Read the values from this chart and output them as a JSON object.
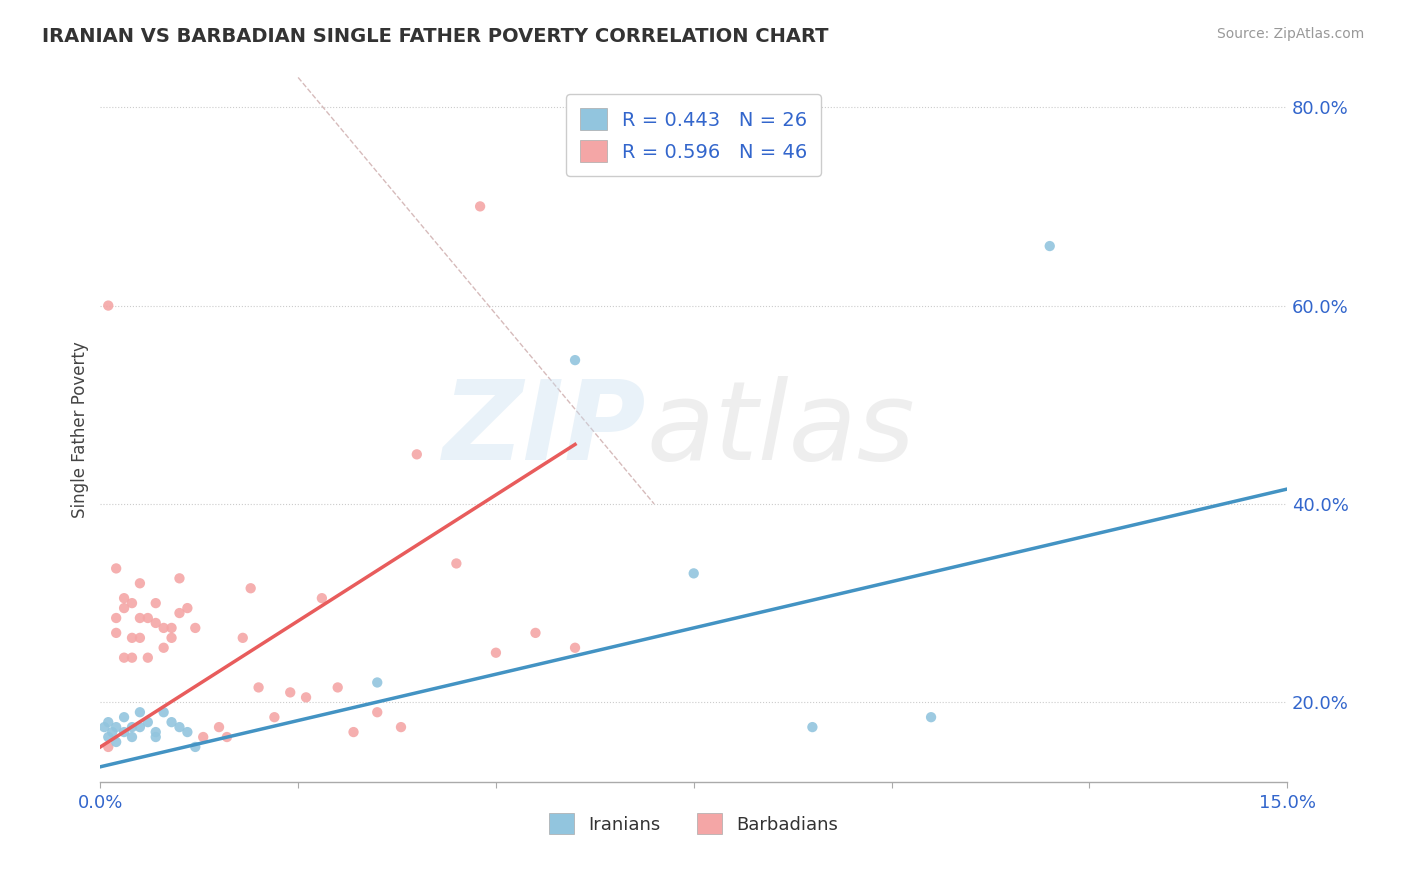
{
  "title": "IRANIAN VS BARBADIAN SINGLE FATHER POVERTY CORRELATION CHART",
  "source": "Source: ZipAtlas.com",
  "ylabel": "Single Father Poverty",
  "xlim": [
    0.0,
    0.15
  ],
  "ylim": [
    0.12,
    0.83
  ],
  "yticks_right": [
    0.2,
    0.4,
    0.6,
    0.8
  ],
  "ytick_right_labels": [
    "20.0%",
    "40.0%",
    "60.0%",
    "80.0%"
  ],
  "iranian_R": 0.443,
  "iranian_N": 26,
  "barbadian_R": 0.596,
  "barbadian_N": 46,
  "iranian_color": "#92c5de",
  "barbadian_color": "#f4a6a6",
  "iranian_line_color": "#4393c3",
  "barbadian_line_color": "#e85c5c",
  "background_color": "#ffffff",
  "iranian_points_x": [
    0.0005,
    0.001,
    0.001,
    0.0015,
    0.002,
    0.002,
    0.003,
    0.003,
    0.004,
    0.004,
    0.005,
    0.005,
    0.006,
    0.007,
    0.007,
    0.008,
    0.009,
    0.01,
    0.011,
    0.012,
    0.035,
    0.06,
    0.075,
    0.09,
    0.105,
    0.12
  ],
  "iranian_points_y": [
    0.175,
    0.18,
    0.165,
    0.17,
    0.175,
    0.16,
    0.185,
    0.17,
    0.175,
    0.165,
    0.19,
    0.175,
    0.18,
    0.17,
    0.165,
    0.19,
    0.18,
    0.175,
    0.17,
    0.155,
    0.22,
    0.545,
    0.33,
    0.175,
    0.185,
    0.66
  ],
  "barbadian_points_x": [
    0.001,
    0.001,
    0.002,
    0.002,
    0.002,
    0.003,
    0.003,
    0.003,
    0.004,
    0.004,
    0.004,
    0.005,
    0.005,
    0.005,
    0.006,
    0.006,
    0.007,
    0.007,
    0.008,
    0.008,
    0.009,
    0.009,
    0.01,
    0.01,
    0.011,
    0.012,
    0.013,
    0.015,
    0.016,
    0.018,
    0.019,
    0.02,
    0.022,
    0.024,
    0.026,
    0.028,
    0.03,
    0.032,
    0.035,
    0.038,
    0.04,
    0.045,
    0.048,
    0.05,
    0.055,
    0.06
  ],
  "barbadian_points_y": [
    0.6,
    0.155,
    0.335,
    0.285,
    0.27,
    0.305,
    0.295,
    0.245,
    0.3,
    0.265,
    0.245,
    0.285,
    0.32,
    0.265,
    0.285,
    0.245,
    0.3,
    0.28,
    0.255,
    0.275,
    0.275,
    0.265,
    0.325,
    0.29,
    0.295,
    0.275,
    0.165,
    0.175,
    0.165,
    0.265,
    0.315,
    0.215,
    0.185,
    0.21,
    0.205,
    0.305,
    0.215,
    0.17,
    0.19,
    0.175,
    0.45,
    0.34,
    0.7,
    0.25,
    0.27,
    0.255
  ],
  "iranian_line_x": [
    0.0,
    0.15
  ],
  "iranian_line_y": [
    0.135,
    0.415
  ],
  "barbadian_line_x": [
    0.0,
    0.06
  ],
  "barbadian_line_y": [
    0.155,
    0.46
  ],
  "ref_line_x": [
    0.025,
    0.07
  ],
  "ref_line_y": [
    0.83,
    0.4
  ]
}
